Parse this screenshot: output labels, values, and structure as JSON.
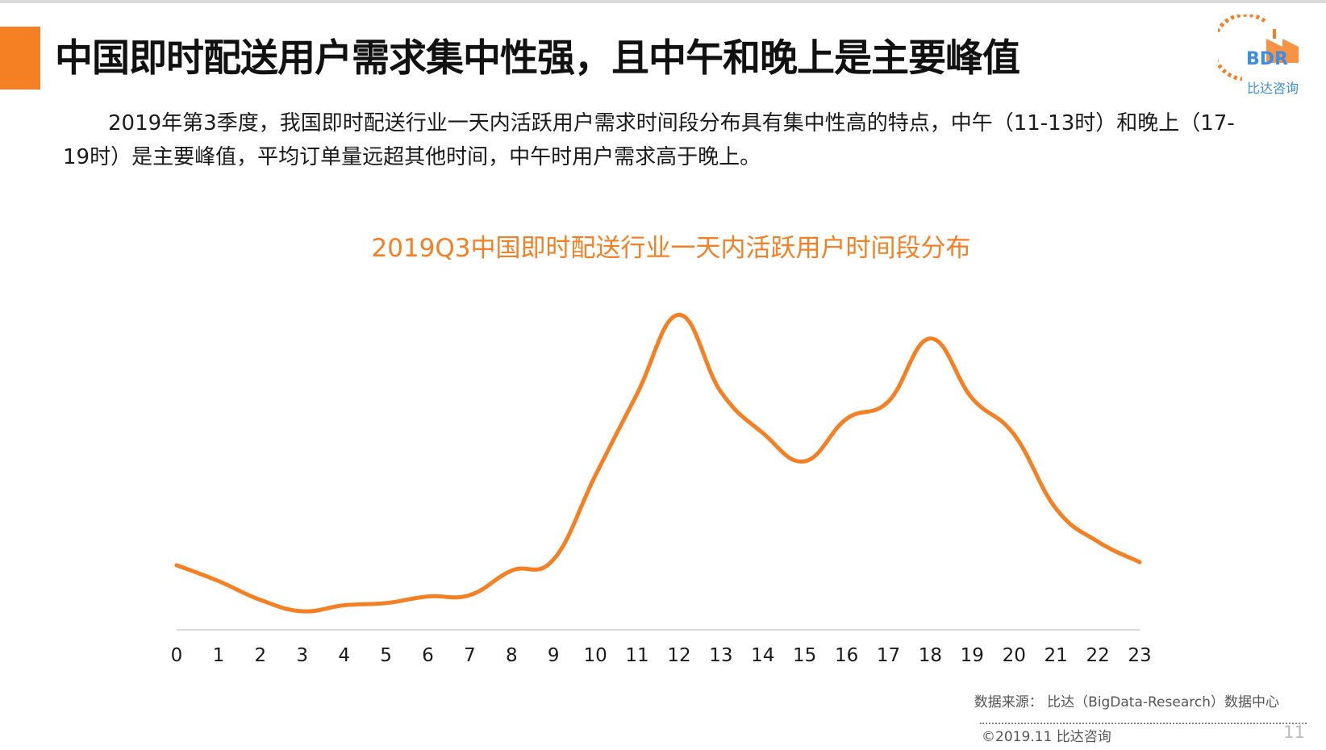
{
  "slide": {
    "title": "中国即时配送用户需求集中性强，且中午和晚上是主要峰值",
    "summary": "2019年第3季度，我国即时配送行业一天内活跃用户需求时间段分布具有集中性高的特点，中午（11-13时）和晚上（17-19时）是主要峰值，平均订单量远超其他时间，中午时用户需求高于晚上。",
    "logo_text": "BDR",
    "logo_sub": "比达咨询",
    "source": "数据来源： 比达（BigData-Research）数据中心",
    "copyright": "©2019.11  比达咨询",
    "page_number": "11"
  },
  "colors": {
    "accent": "#f58023",
    "logo_blue": "#3a8ee6",
    "text": "#1a1a1a"
  },
  "chart_data": {
    "type": "line",
    "title": "2019Q3中国即时配送行业一天内活跃用户时间段分布",
    "xlabel": "",
    "ylabel": "",
    "categories": [
      "0",
      "1",
      "2",
      "3",
      "4",
      "5",
      "6",
      "7",
      "8",
      "9",
      "10",
      "11",
      "12",
      "13",
      "14",
      "15",
      "16",
      "17",
      "18",
      "19",
      "20",
      "21",
      "22",
      "23"
    ],
    "series": [
      {
        "values": [
          20.5,
          15.5,
          9.5,
          5.9,
          7.8,
          8.5,
          10.6,
          11.0,
          18.8,
          22.3,
          49.0,
          75.0,
          100.0,
          75.5,
          62.5,
          53.5,
          67.0,
          72.5,
          92.5,
          73.5,
          62.0,
          38.5,
          28.0,
          21.5
        ],
        "color": "#f58023"
      }
    ],
    "ylim": [
      0,
      100
    ],
    "grid": false,
    "legend": "none"
  }
}
